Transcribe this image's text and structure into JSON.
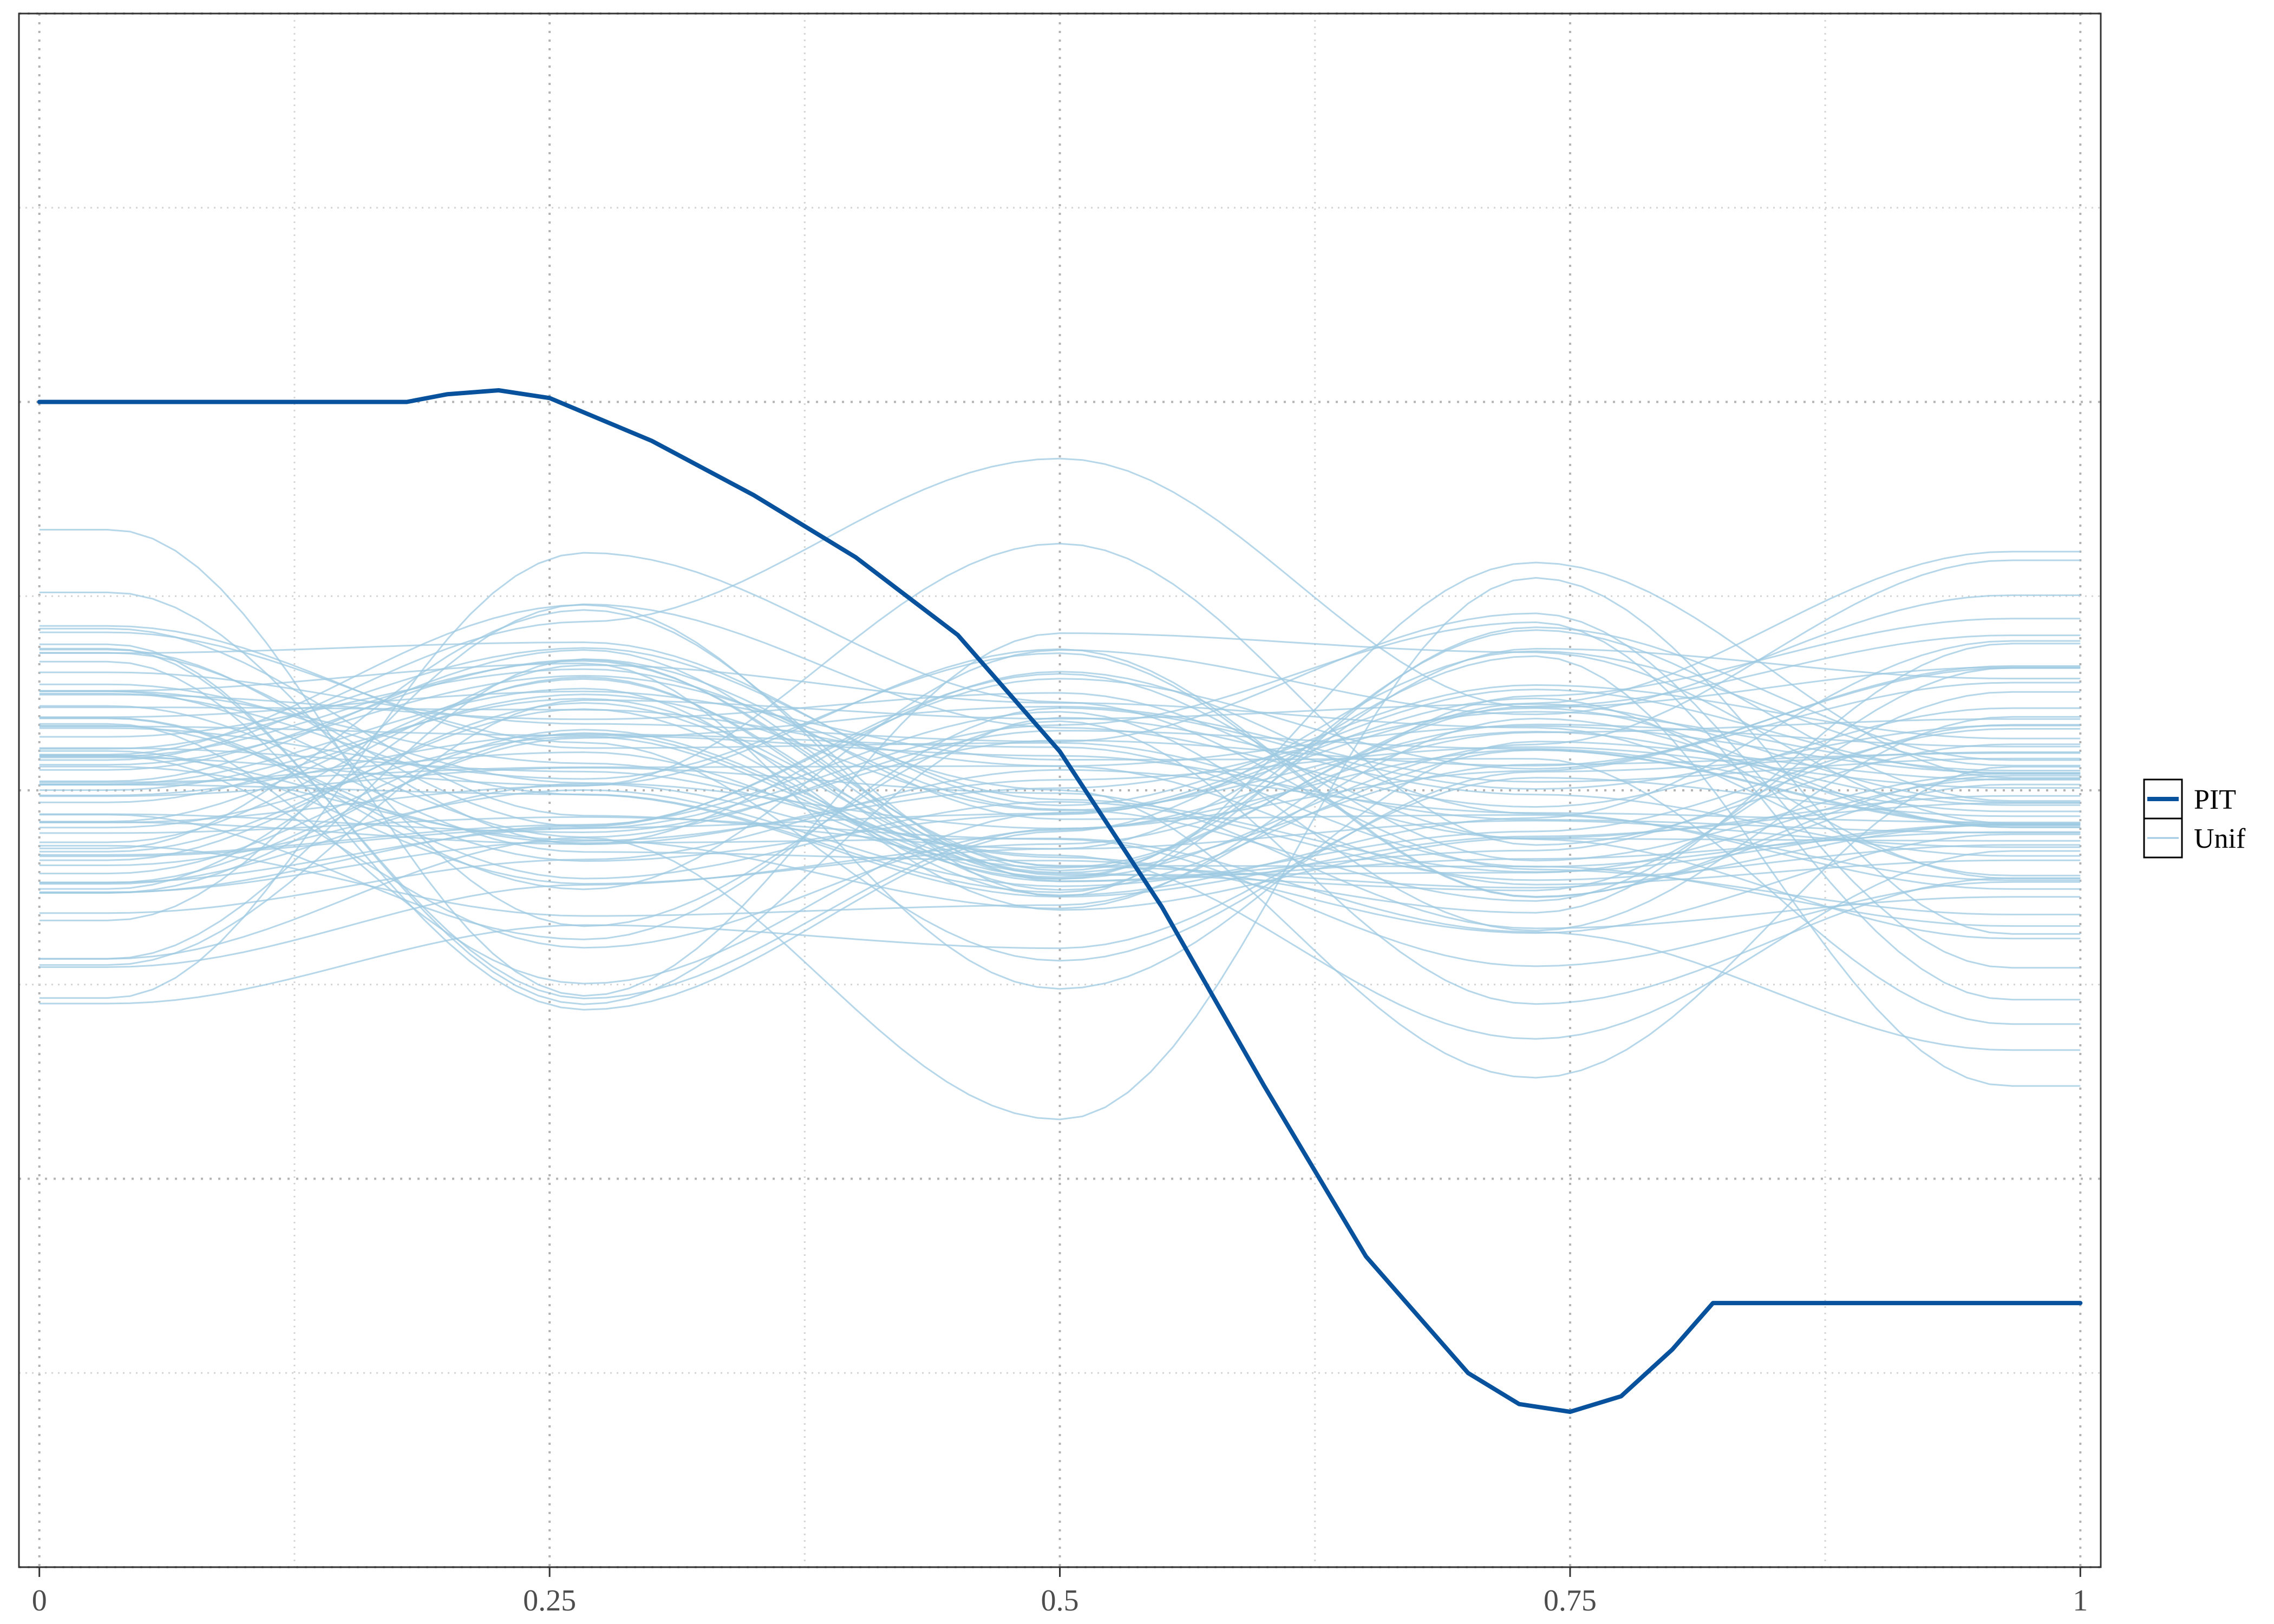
{
  "chart_data": {
    "type": "line",
    "title": "",
    "xlabel": "",
    "ylabel": "",
    "xlim": [
      -0.01,
      1.01
    ],
    "ylim": [
      -1.0,
      1.0
    ],
    "x_ticks": [
      0,
      0.25,
      0.5,
      0.75,
      1
    ],
    "x_tick_labels": [
      "0",
      "0.25",
      "0.5",
      "0.75",
      "1"
    ],
    "grid": true,
    "grid_style": "dotted",
    "legend_position": "right",
    "colors": {
      "pit": "#08519c",
      "unif": "#9ecae1"
    },
    "series": [
      {
        "name": "PIT",
        "role": "pit",
        "x": [
          0,
          0.05,
          0.1,
          0.15,
          0.18,
          0.2,
          0.225,
          0.25,
          0.3,
          0.35,
          0.4,
          0.45,
          0.5,
          0.55,
          0.6,
          0.65,
          0.7,
          0.725,
          0.75,
          0.775,
          0.8,
          0.82,
          0.85,
          0.9,
          0.95,
          1
        ],
        "y": [
          0.5,
          0.5,
          0.5,
          0.5,
          0.5,
          0.51,
          0.515,
          0.505,
          0.45,
          0.38,
          0.3,
          0.2,
          0.05,
          -0.15,
          -0.38,
          -0.6,
          -0.75,
          -0.79,
          -0.8,
          -0.78,
          -0.72,
          -0.66,
          -0.66,
          -0.66,
          -0.66,
          -0.66
        ]
      },
      {
        "name": "Unif",
        "role": "unif",
        "count": 80,
        "seed": 7,
        "spread": 0.13,
        "x_start": 0.035,
        "x_end": 0.965
      }
    ]
  },
  "legend": {
    "items": [
      {
        "label": "PIT",
        "role": "pit"
      },
      {
        "label": "Unif",
        "role": "unif"
      }
    ]
  }
}
